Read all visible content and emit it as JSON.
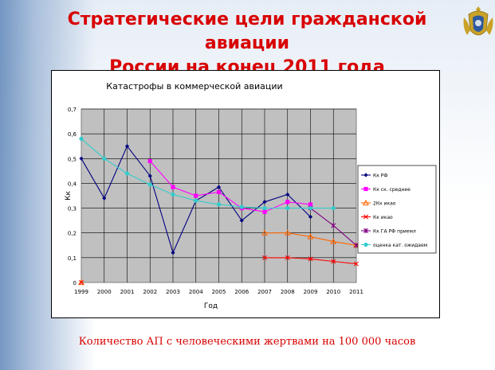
{
  "slide": {
    "title_line1": "Стратегические цели гражданской авиации",
    "title_line2": "России на конец 2011 года",
    "footnote": "Количество АП с человеческими жертвами на 100 000 часов"
  },
  "colors": {
    "title": "#d80000",
    "plot_bg": "#c0c0c0"
  },
  "chart_data": {
    "type": "line",
    "title": "Катастрофы в коммерческой авиации",
    "xlabel": "Год",
    "ylabel": "Кк",
    "ylim": [
      0,
      0.7
    ],
    "yticks": [
      "0",
      "0,1",
      "0,2",
      "0,3",
      "0,4",
      "0,5",
      "0,6",
      "0,7"
    ],
    "x": [
      "1999",
      "2000",
      "2001",
      "2002",
      "2003",
      "2004",
      "2005",
      "2006",
      "2007",
      "2008",
      "2009",
      "2010",
      "2011"
    ],
    "grid": true,
    "legend_position": "right",
    "series": [
      {
        "name": "Кк РФ",
        "color": "#000080",
        "marker": "diamond",
        "values": [
          0.5,
          0.34,
          0.55,
          0.43,
          0.12,
          0.33,
          0.385,
          0.25,
          0.325,
          0.355,
          0.265,
          null,
          null
        ]
      },
      {
        "name": "Кк ск. среднее",
        "color": "#ff00ff",
        "marker": "square",
        "values": [
          null,
          null,
          null,
          0.49,
          0.385,
          0.35,
          0.365,
          0.3,
          0.285,
          0.325,
          0.315,
          null,
          null
        ]
      },
      {
        "name": "2Кк икао",
        "color": "#ff6600",
        "marker": "triangle",
        "values": [
          0,
          null,
          null,
          null,
          null,
          null,
          null,
          null,
          0.2,
          0.2,
          0.185,
          0.165,
          0.15
        ]
      },
      {
        "name": "Кк икао",
        "color": "#ff0000",
        "marker": "x",
        "values": [
          0,
          null,
          null,
          null,
          null,
          null,
          null,
          null,
          0.1,
          0.1,
          0.095,
          0.085,
          0.075
        ]
      },
      {
        "name": "Кк ГА РФ приемл",
        "color": "#800080",
        "marker": "star",
        "values": [
          null,
          null,
          null,
          null,
          null,
          null,
          null,
          null,
          null,
          null,
          0.3,
          0.23,
          0.15
        ]
      },
      {
        "name": "оценка кат. ожидаем",
        "color": "#33cccc",
        "marker": "circle",
        "values": [
          0.58,
          0.5,
          0.44,
          0.395,
          0.355,
          0.33,
          0.315,
          0.305,
          0.3,
          0.3,
          0.3,
          0.3,
          null
        ]
      }
    ]
  }
}
